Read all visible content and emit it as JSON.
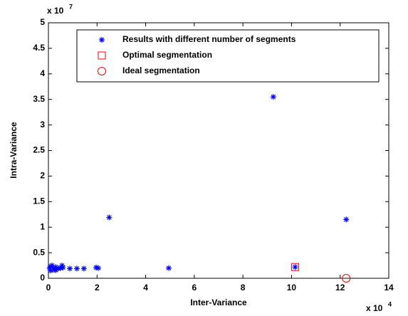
{
  "chart_data": {
    "type": "scatter",
    "x_label": "Inter-Variance",
    "y_label": "Intra-Variance",
    "x_multiplier": {
      "base": "x 10",
      "exponent": "4"
    },
    "y_multiplier": {
      "base": "x 10",
      "exponent": "7"
    },
    "xlim": [
      0,
      14
    ],
    "ylim": [
      0,
      5
    ],
    "xticks": [
      0,
      2,
      4,
      6,
      8,
      10,
      12,
      14
    ],
    "yticks": [
      0,
      0.5,
      1,
      1.5,
      2,
      2.5,
      3,
      3.5,
      4,
      4.5,
      5
    ],
    "legend": "top",
    "series": [
      {
        "name": "Results with different number of segments",
        "color": "#0000ff",
        "marker": "asterisk",
        "x": [
          0.05,
          0.1,
          0.15,
          0.2,
          0.25,
          0.3,
          0.4,
          0.5,
          0.6,
          0.1,
          0.3,
          0.56,
          0.88,
          1.17,
          1.46,
          1.96,
          2.05,
          2.5,
          4.95,
          9.25,
          10.15,
          12.25
        ],
        "y": [
          0.2,
          0.15,
          0.25,
          0.2,
          0.17,
          0.22,
          0.19,
          0.2,
          0.21,
          0.23,
          0.16,
          0.25,
          0.19,
          0.19,
          0.19,
          0.21,
          0.2,
          1.19,
          0.2,
          3.55,
          0.22,
          1.15
        ]
      },
      {
        "name": "Optimal segmentation",
        "color": "#ff0000",
        "marker": "square",
        "x": [
          10.15
        ],
        "y": [
          0.22
        ]
      },
      {
        "name": "Ideal segmentation",
        "color": "#ff0000",
        "marker": "circle",
        "x": [
          12.25
        ],
        "y": [
          0
        ]
      }
    ]
  }
}
